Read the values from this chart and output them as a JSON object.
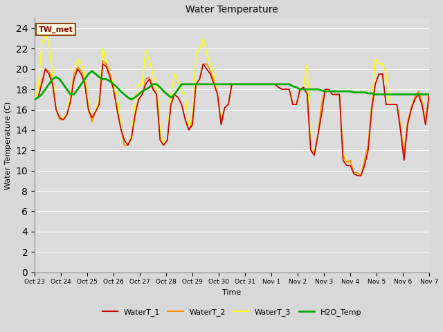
{
  "title": "Water Temperature",
  "ylabel": "Water Temperature (C)",
  "xlabel": "Time",
  "annotation": "TW_met",
  "ylim": [
    0,
    25
  ],
  "yticks": [
    0,
    2,
    4,
    6,
    8,
    10,
    12,
    14,
    16,
    18,
    20,
    22,
    24
  ],
  "xtick_labels": [
    "Oct 23",
    "Oct 24",
    "Oct 25",
    "Oct 26",
    "Oct 27",
    "Oct 28",
    "Oct 29",
    "Oct 30",
    "Oct 31",
    "Nov 1",
    "Nov 2",
    "Nov 3",
    "Nov 4",
    "Nov 5",
    "Nov 6",
    "Nov 7"
  ],
  "colors": {
    "WaterT_1": "#cc0000",
    "WaterT_2": "#ff8800",
    "WaterT_3": "#ffff00",
    "H2O_Temp": "#00aa00"
  },
  "fig_facecolor": "#d8d8d8",
  "ax_facecolor": "#dcdcdc",
  "x_values": [
    0,
    1,
    2,
    3,
    4,
    5,
    6,
    7,
    8,
    9,
    10,
    11,
    12,
    13,
    14,
    15,
    16,
    17,
    18,
    19,
    20,
    21,
    22,
    23,
    24,
    25,
    26,
    27,
    28,
    29,
    30,
    31,
    32,
    33,
    34,
    35,
    36,
    37,
    38,
    39,
    40,
    41,
    42,
    43,
    44,
    45,
    46,
    47,
    48,
    49,
    50,
    51,
    52,
    53,
    54,
    55,
    56,
    57,
    58,
    59,
    60,
    61,
    62,
    63,
    64,
    65,
    66,
    67,
    68,
    69,
    70,
    71,
    72,
    73,
    74,
    75,
    76,
    77,
    78,
    79,
    80,
    81,
    82,
    83,
    84,
    85,
    86,
    87,
    88,
    89,
    90,
    91,
    92,
    93,
    94,
    95,
    96,
    97,
    98,
    99,
    100,
    101,
    102,
    103,
    104,
    105,
    106,
    107,
    108,
    109,
    110
  ],
  "WaterT_1": [
    17.0,
    17.2,
    18.5,
    20.0,
    19.5,
    18.5,
    16.0,
    15.2,
    15.0,
    15.5,
    16.8,
    19.0,
    20.0,
    19.5,
    18.5,
    16.0,
    15.2,
    15.8,
    16.5,
    20.5,
    20.2,
    19.2,
    18.0,
    16.0,
    14.2,
    13.0,
    12.5,
    13.2,
    15.5,
    17.0,
    17.5,
    18.5,
    19.0,
    18.0,
    17.5,
    13.0,
    12.5,
    13.0,
    16.5,
    17.5,
    17.2,
    16.5,
    15.0,
    14.0,
    14.5,
    18.5,
    19.0,
    20.5,
    20.0,
    19.5,
    18.5,
    17.5,
    14.5,
    16.2,
    16.5,
    18.5,
    18.5,
    18.5,
    18.5,
    18.5,
    18.5,
    18.5,
    18.5,
    18.5,
    18.5,
    18.5,
    18.5,
    18.5,
    18.2,
    18.0,
    18.0,
    18.0,
    16.5,
    16.5,
    18.0,
    18.2,
    17.5,
    12.0,
    11.5,
    13.5,
    15.5,
    18.0,
    18.0,
    17.5,
    17.5,
    17.5,
    11.0,
    10.5,
    10.5,
    9.7,
    9.5,
    9.5,
    10.5,
    12.0,
    16.0,
    18.5,
    19.5,
    19.5,
    16.5,
    16.5,
    16.5,
    16.5,
    14.0,
    11.0,
    14.5,
    16.0,
    17.0,
    17.5,
    16.5,
    14.5,
    17.5
  ],
  "WaterT_2": [
    17.0,
    17.2,
    18.8,
    20.0,
    19.8,
    18.8,
    16.0,
    15.0,
    15.0,
    15.5,
    16.8,
    19.5,
    20.2,
    19.8,
    18.8,
    16.0,
    14.8,
    15.8,
    16.5,
    20.8,
    20.5,
    19.5,
    18.0,
    16.0,
    14.2,
    12.5,
    12.5,
    13.2,
    15.5,
    17.0,
    17.5,
    19.0,
    19.2,
    18.2,
    17.5,
    13.0,
    12.5,
    13.0,
    16.5,
    17.5,
    17.2,
    16.5,
    15.0,
    14.0,
    14.8,
    18.5,
    19.0,
    20.5,
    20.5,
    19.8,
    18.8,
    17.5,
    14.8,
    16.2,
    16.5,
    18.5,
    18.5,
    18.5,
    18.5,
    18.5,
    18.5,
    18.5,
    18.5,
    18.5,
    18.5,
    18.5,
    18.5,
    18.5,
    18.2,
    18.0,
    18.0,
    18.0,
    16.5,
    16.5,
    18.0,
    18.2,
    17.5,
    12.0,
    11.8,
    13.5,
    16.5,
    18.0,
    18.0,
    17.5,
    17.5,
    17.5,
    11.5,
    10.8,
    11.0,
    9.8,
    9.8,
    9.5,
    11.0,
    12.5,
    16.5,
    18.5,
    19.5,
    19.5,
    16.5,
    16.5,
    16.5,
    16.5,
    14.5,
    11.5,
    14.8,
    16.2,
    17.2,
    17.8,
    16.8,
    14.8,
    17.5
  ],
  "WaterT_3": [
    17.0,
    18.0,
    22.5,
    23.5,
    22.5,
    19.5,
    16.0,
    15.2,
    15.2,
    15.5,
    17.5,
    19.5,
    21.0,
    20.5,
    19.5,
    16.5,
    14.8,
    16.0,
    17.0,
    22.0,
    20.8,
    19.5,
    18.5,
    17.5,
    14.5,
    12.5,
    12.5,
    13.5,
    16.5,
    18.5,
    18.5,
    21.8,
    20.8,
    19.5,
    18.5,
    14.0,
    12.5,
    13.0,
    17.5,
    19.5,
    18.8,
    17.8,
    17.5,
    14.5,
    14.8,
    21.5,
    22.0,
    23.0,
    21.5,
    20.5,
    19.5,
    17.5,
    14.8,
    16.2,
    16.5,
    18.5,
    18.5,
    18.5,
    18.5,
    18.5,
    18.5,
    18.5,
    18.5,
    18.5,
    18.5,
    18.5,
    18.5,
    18.5,
    18.2,
    18.0,
    18.0,
    18.0,
    16.5,
    16.5,
    18.0,
    18.2,
    20.5,
    12.0,
    11.8,
    13.5,
    16.5,
    18.0,
    18.0,
    17.5,
    17.5,
    17.5,
    11.8,
    10.8,
    11.0,
    9.8,
    9.8,
    9.5,
    11.0,
    12.5,
    16.5,
    21.0,
    20.5,
    20.5,
    19.5,
    16.5,
    16.5,
    16.5,
    14.5,
    11.5,
    14.8,
    16.2,
    17.2,
    17.8,
    16.8,
    14.8,
    17.5
  ],
  "H2O_Temp": [
    17.0,
    17.2,
    17.5,
    18.0,
    18.5,
    19.0,
    19.2,
    19.0,
    18.5,
    18.0,
    17.5,
    17.5,
    18.0,
    18.5,
    19.0,
    19.5,
    19.8,
    19.5,
    19.2,
    19.0,
    19.0,
    18.8,
    18.5,
    18.2,
    17.8,
    17.5,
    17.2,
    17.0,
    17.2,
    17.5,
    17.8,
    18.0,
    18.2,
    18.5,
    18.5,
    18.2,
    17.8,
    17.5,
    17.2,
    17.5,
    18.0,
    18.5,
    18.5,
    18.5,
    18.5,
    18.5,
    18.5,
    18.5,
    18.5,
    18.5,
    18.5,
    18.5,
    18.5,
    18.5,
    18.5,
    18.5,
    18.5,
    18.5,
    18.5,
    18.5,
    18.5,
    18.5,
    18.5,
    18.5,
    18.5,
    18.5,
    18.5,
    18.5,
    18.5,
    18.5,
    18.5,
    18.5,
    18.3,
    18.2,
    18.0,
    18.0,
    18.0,
    18.0,
    18.0,
    18.0,
    17.9,
    17.8,
    17.8,
    17.8,
    17.8,
    17.8,
    17.8,
    17.8,
    17.8,
    17.7,
    17.7,
    17.7,
    17.7,
    17.6,
    17.6,
    17.5,
    17.5,
    17.5,
    17.5,
    17.5,
    17.5,
    17.5,
    17.5,
    17.5,
    17.5,
    17.5,
    17.5,
    17.5,
    17.5,
    17.5,
    17.5
  ]
}
